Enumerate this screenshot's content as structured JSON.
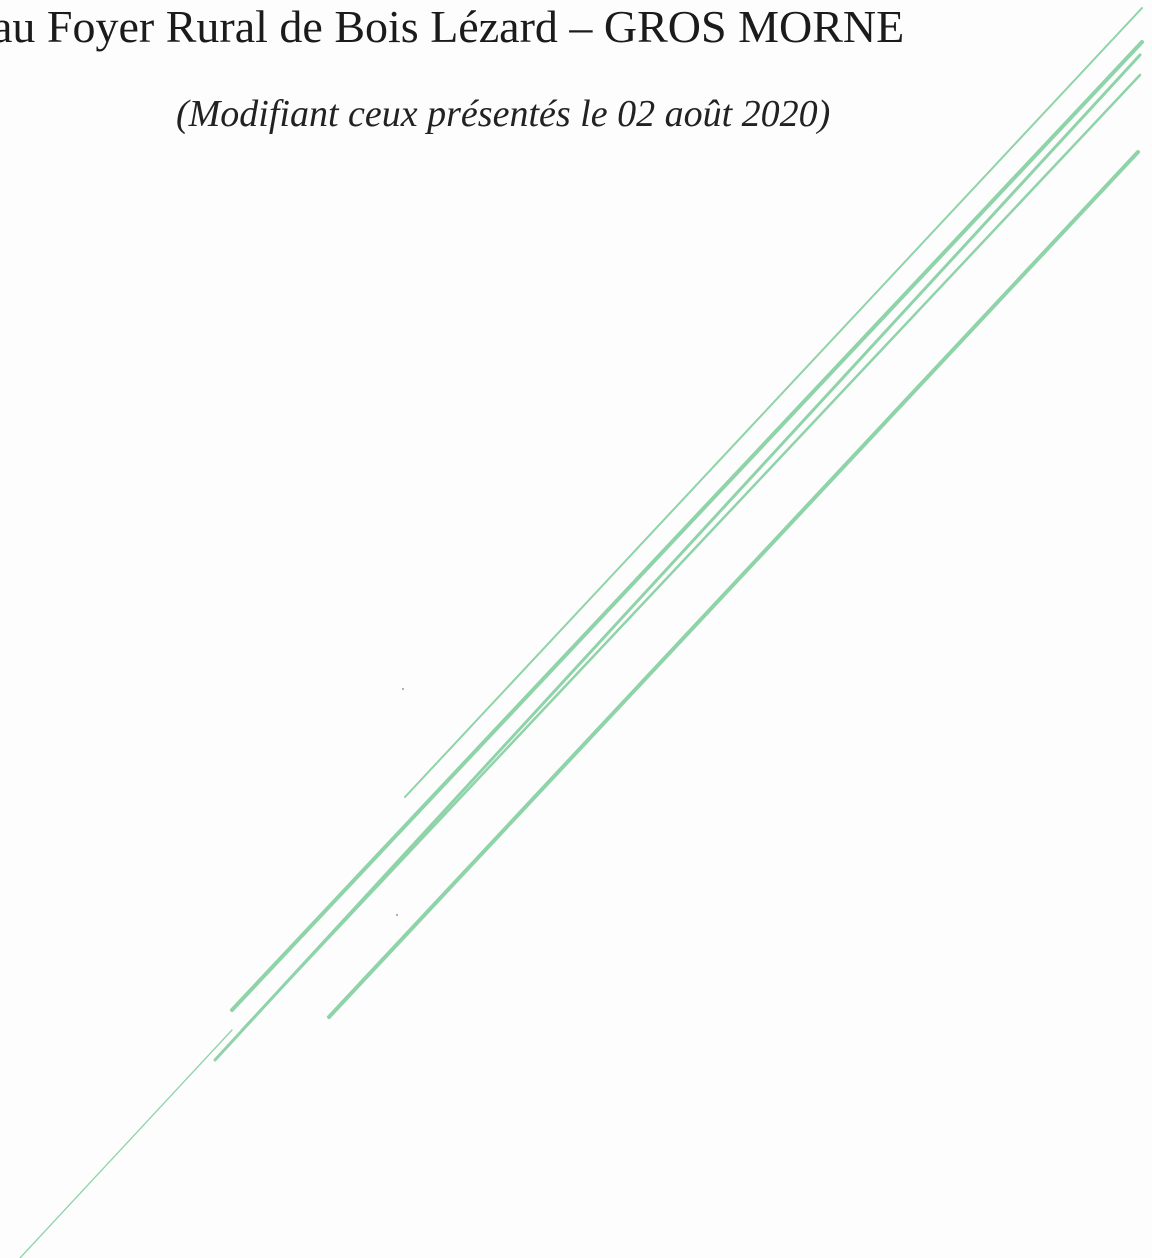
{
  "document": {
    "heading": "au Foyer Rural de Bois Lézard – GROS MORNE",
    "subheading": "(Modifiant ceux présentés le 02 août 2020)"
  },
  "colors": {
    "paper": "#fdfdfd",
    "text": "#1b1b1b",
    "strikeout_line": "#8fd3a9"
  }
}
